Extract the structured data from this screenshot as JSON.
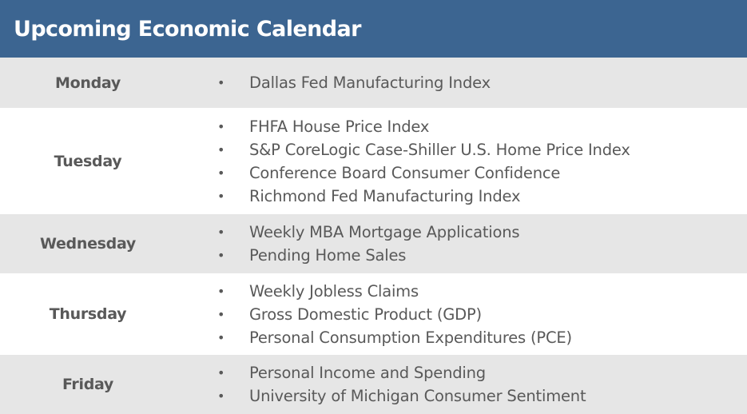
{
  "header": {
    "title": "Upcoming Economic Calendar"
  },
  "schedule": [
    {
      "day": "Monday",
      "events": [
        "Dallas Fed Manufacturing Index"
      ]
    },
    {
      "day": "Tuesday",
      "events": [
        "FHFA House Price Index",
        "S&P CoreLogic Case-Shiller U.S. Home Price Index",
        "Conference Board Consumer Confidence",
        "Richmond Fed Manufacturing Index"
      ]
    },
    {
      "day": "Wednesday",
      "events": [
        "Weekly MBA Mortgage Applications",
        "Pending Home Sales"
      ]
    },
    {
      "day": "Thursday",
      "events": [
        "Weekly Jobless Claims",
        "Gross Domestic Product (GDP)",
        "Personal Consumption Expenditures (PCE)"
      ]
    },
    {
      "day": "Friday",
      "events": [
        "Personal Income and Spending",
        "University of Michigan Consumer Sentiment"
      ]
    }
  ],
  "colors": {
    "header_bg": "#3c6591",
    "shaded_row": "#e6e6e6",
    "text": "#595959"
  }
}
